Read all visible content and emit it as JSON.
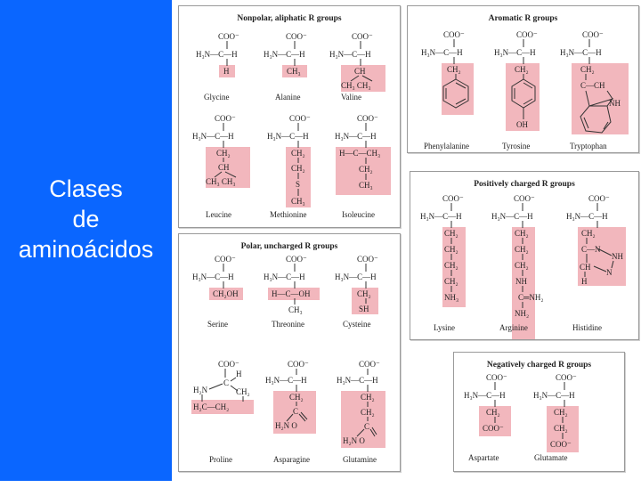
{
  "slide": {
    "title_lines": [
      "Clases",
      "de",
      "aminoácidos"
    ],
    "left_color": "#0a66ff",
    "highlight_color": "#f2b7bd"
  },
  "panels": {
    "nonpolar": {
      "title": "Nonpolar, aliphatic R groups",
      "names": [
        "Glycine",
        "Alanine",
        "Valine",
        "Leucine",
        "Methionine",
        "Isoleucine"
      ]
    },
    "aromatic": {
      "title": "Aromatic R groups",
      "names": [
        "Phenylalanine",
        "Tyrosine",
        "Tryptophan"
      ]
    },
    "polar": {
      "title": "Polar, uncharged R groups",
      "names": [
        "Serine",
        "Threonine",
        "Cysteine",
        "Proline",
        "Asparagine",
        "Glutamine"
      ]
    },
    "positive": {
      "title": "Positively charged R groups",
      "names": [
        "Lysine",
        "Arginine",
        "Histidine"
      ]
    },
    "negative": {
      "title": "Negatively charged R groups",
      "names": [
        "Aspartate",
        "Glutamate"
      ]
    }
  },
  "atoms": {
    "coo": "COO⁻",
    "h3n": "H₃N—C—H",
    "h3n_plus": "+",
    "h": "H",
    "ch3": "CH₃",
    "ch2": "CH₂",
    "ch": "CH",
    "ch3_ch3": "CH₃  CH₃",
    "s": "S",
    "oh": "OH",
    "ch2oh": "CH₂OH",
    "h_c_oh": "H—C—OH",
    "sh": "SH",
    "h_c_ch3": "H—C—CH₃",
    "nh": "NH",
    "nh3": "NH₃",
    "nh2": "NH₂",
    "c_nh2": "C═NH₂",
    "coo_side": "COO⁻",
    "h2n_c_o": "H₂N   O",
    "c": "C",
    "o": "O",
    "n": "N",
    "c_ch": "C—CH",
    "h2n_plus": "H₂N",
    "h2c_ch2": "H₂C—CH₂",
    "nh_ring": "NH",
    "c_h_ring": "C—N",
    "ch_ring": "CH"
  }
}
